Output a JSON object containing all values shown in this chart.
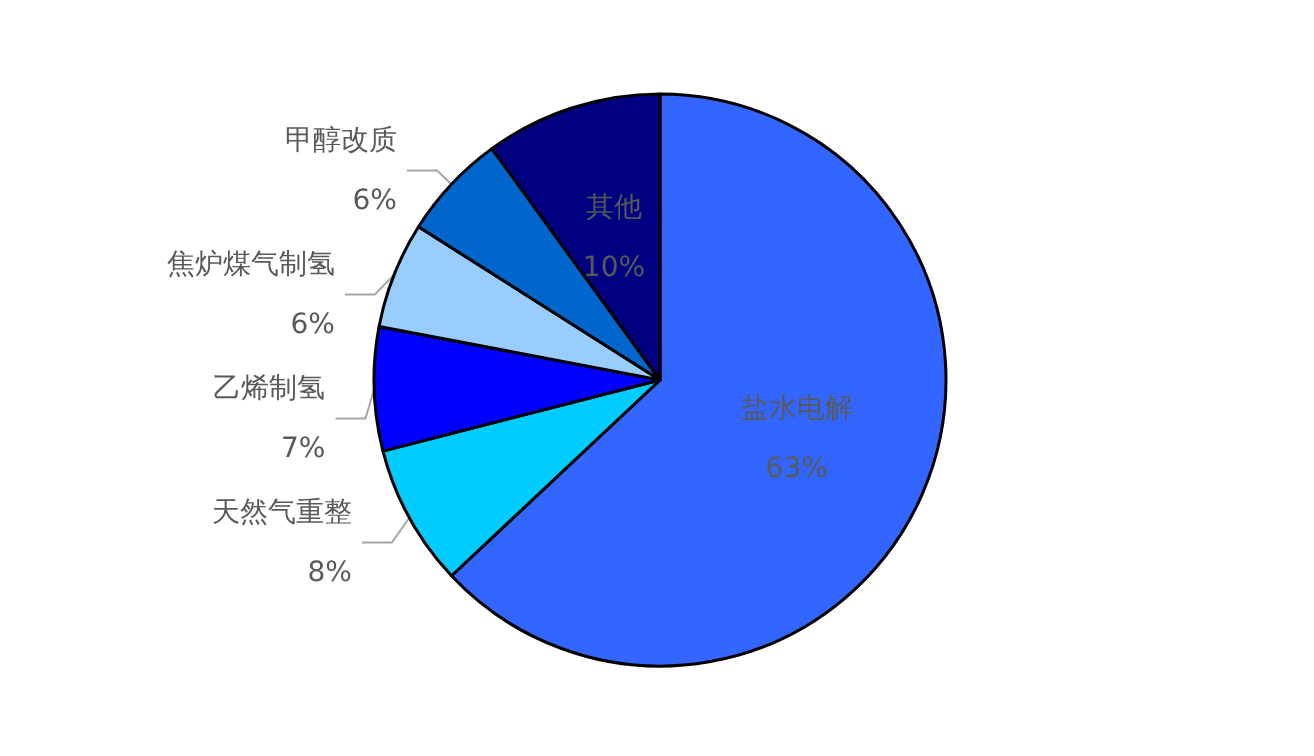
{
  "chart_data": {
    "type": "pie",
    "categories": [
      "盐水电解",
      "天然气重整",
      "乙烯制氢",
      "焦炉煤气制氢",
      "甲醇改质",
      "其他"
    ],
    "values": [
      63,
      8,
      7,
      6,
      6,
      10
    ],
    "value_labels": [
      "63%",
      "8%",
      "7%",
      "6%",
      "6%",
      "10%"
    ],
    "colors": [
      "#3366ff",
      "#00ccff",
      "#0000ff",
      "#99ccff",
      "#0066cc",
      "#000080"
    ],
    "legend": false
  }
}
